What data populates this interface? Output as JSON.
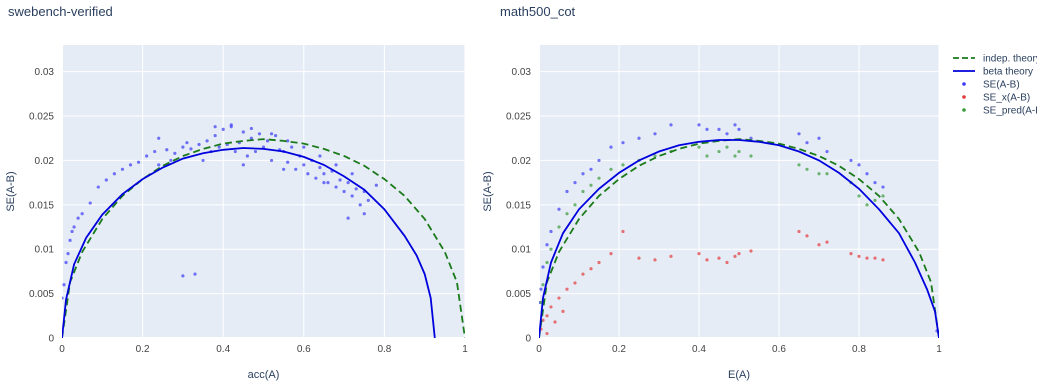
{
  "chart_data": [
    {
      "type": "scatter",
      "title": "swebench-verified",
      "xlabel": "acc(A)",
      "ylabel": "SE(A-B)",
      "xlim": [
        0,
        1
      ],
      "ylim": [
        0,
        0.033
      ],
      "xticks": [
        "0",
        "0.2",
        "0.4",
        "0.6",
        "0.8",
        "1"
      ],
      "yticks": [
        "0",
        "0.005",
        "0.01",
        "0.015",
        "0.02",
        "0.025",
        "0.03"
      ],
      "grid": true,
      "series": [
        {
          "name": "indep. theory",
          "kind": "line",
          "style": "dashed",
          "color": "#1a7a1a",
          "x": [
            0.0,
            0.02,
            0.05,
            0.1,
            0.15,
            0.2,
            0.25,
            0.3,
            0.35,
            0.4,
            0.45,
            0.5,
            0.55,
            0.6,
            0.65,
            0.7,
            0.75,
            0.8,
            0.85,
            0.9,
            0.95,
            0.98,
            1.0
          ],
          "y": [
            0.0,
            0.0063,
            0.0097,
            0.0134,
            0.016,
            0.0179,
            0.0194,
            0.0205,
            0.0213,
            0.0219,
            0.0222,
            0.0224,
            0.0222,
            0.0219,
            0.0213,
            0.0205,
            0.0194,
            0.0179,
            0.016,
            0.0134,
            0.0097,
            0.0063,
            0.0
          ]
        },
        {
          "name": "beta theory",
          "kind": "line",
          "style": "solid",
          "color": "#0000dd",
          "x": [
            0.0,
            0.01,
            0.03,
            0.06,
            0.1,
            0.15,
            0.2,
            0.25,
            0.3,
            0.35,
            0.4,
            0.45,
            0.5,
            0.55,
            0.6,
            0.65,
            0.7,
            0.75,
            0.8,
            0.85,
            0.88,
            0.9,
            0.915,
            0.925
          ],
          "y": [
            0.0,
            0.0043,
            0.0083,
            0.0113,
            0.0139,
            0.0162,
            0.0179,
            0.0192,
            0.0202,
            0.0208,
            0.0212,
            0.0214,
            0.0213,
            0.021,
            0.0204,
            0.0195,
            0.0182,
            0.0167,
            0.0145,
            0.0115,
            0.0093,
            0.0072,
            0.0045,
            0.0
          ]
        },
        {
          "name": "SE(A-B)",
          "kind": "points",
          "color": "#3b3bf5",
          "x": [
            0.0,
            0.005,
            0.01,
            0.015,
            0.02,
            0.025,
            0.03,
            0.04,
            0.05,
            0.07,
            0.09,
            0.11,
            0.13,
            0.15,
            0.17,
            0.19,
            0.21,
            0.23,
            0.24,
            0.26,
            0.28,
            0.3,
            0.31,
            0.32,
            0.34,
            0.36,
            0.37,
            0.38,
            0.39,
            0.4,
            0.41,
            0.42,
            0.43,
            0.44,
            0.45,
            0.46,
            0.47,
            0.48,
            0.49,
            0.5,
            0.51,
            0.52,
            0.53,
            0.54,
            0.55,
            0.56,
            0.57,
            0.58,
            0.59,
            0.6,
            0.61,
            0.62,
            0.63,
            0.64,
            0.65,
            0.66,
            0.67,
            0.68,
            0.69,
            0.7,
            0.71,
            0.72,
            0.73,
            0.74,
            0.75,
            0.76,
            0.78,
            0.3,
            0.33,
            0.38,
            0.42,
            0.47,
            0.52,
            0.56,
            0.6,
            0.64,
            0.68,
            0.72,
            0.24,
            0.27,
            0.35,
            0.45,
            0.55,
            0.65,
            0.71,
            0.75
          ],
          "y": [
            0.0045,
            0.006,
            0.0085,
            0.0095,
            0.011,
            0.012,
            0.0125,
            0.0135,
            0.014,
            0.0152,
            0.017,
            0.0178,
            0.0185,
            0.019,
            0.0195,
            0.0198,
            0.0205,
            0.021,
            0.0225,
            0.0212,
            0.0208,
            0.0215,
            0.022,
            0.0213,
            0.0218,
            0.0222,
            0.021,
            0.0228,
            0.0215,
            0.0235,
            0.0218,
            0.0238,
            0.021,
            0.022,
            0.0232,
            0.0205,
            0.0225,
            0.021,
            0.023,
            0.0215,
            0.0222,
            0.02,
            0.0228,
            0.0212,
            0.021,
            0.0198,
            0.0215,
            0.019,
            0.0205,
            0.0195,
            0.0185,
            0.02,
            0.018,
            0.0192,
            0.0185,
            0.0175,
            0.0188,
            0.017,
            0.0178,
            0.0165,
            0.0175,
            0.016,
            0.0168,
            0.015,
            0.0165,
            0.0155,
            0.0172,
            0.007,
            0.0072,
            0.0238,
            0.024,
            0.0236,
            0.023,
            0.0222,
            0.0215,
            0.0205,
            0.0195,
            0.0185,
            0.0195,
            0.02,
            0.02,
            0.0195,
            0.019,
            0.0175,
            0.0135,
            0.014
          ]
        }
      ]
    },
    {
      "type": "scatter",
      "title": "math500_cot",
      "xlabel": "E(A)",
      "ylabel": "SE(A-B)",
      "xlim": [
        0,
        1
      ],
      "ylim": [
        0,
        0.033
      ],
      "xticks": [
        "0",
        "0.2",
        "0.4",
        "0.6",
        "0.8",
        "1"
      ],
      "yticks": [
        "0",
        "0.005",
        "0.01",
        "0.015",
        "0.02",
        "0.025",
        "0.03"
      ],
      "grid": true,
      "legend": "right",
      "series": [
        {
          "name": "indep. theory",
          "kind": "line",
          "style": "dashed",
          "color": "#1a7a1a",
          "x": [
            0.0,
            0.02,
            0.05,
            0.1,
            0.15,
            0.2,
            0.25,
            0.3,
            0.35,
            0.4,
            0.45,
            0.5,
            0.55,
            0.6,
            0.65,
            0.7,
            0.75,
            0.8,
            0.85,
            0.9,
            0.95,
            0.98,
            1.0
          ],
          "y": [
            0.0,
            0.0063,
            0.0097,
            0.0134,
            0.016,
            0.0179,
            0.0194,
            0.0205,
            0.0213,
            0.0219,
            0.0222,
            0.0224,
            0.0222,
            0.0219,
            0.0213,
            0.0205,
            0.0194,
            0.0179,
            0.016,
            0.0134,
            0.0097,
            0.0063,
            0.0
          ]
        },
        {
          "name": "beta theory",
          "kind": "line",
          "style": "solid",
          "color": "#0000dd",
          "x": [
            0.0,
            0.01,
            0.03,
            0.06,
            0.1,
            0.15,
            0.2,
            0.25,
            0.3,
            0.35,
            0.4,
            0.45,
            0.5,
            0.55,
            0.6,
            0.65,
            0.7,
            0.75,
            0.8,
            0.85,
            0.9,
            0.94,
            0.97,
            0.99,
            1.0
          ],
          "y": [
            0.0,
            0.0045,
            0.0085,
            0.0118,
            0.0145,
            0.0168,
            0.0186,
            0.02,
            0.021,
            0.0217,
            0.0221,
            0.0223,
            0.0223,
            0.0221,
            0.0217,
            0.021,
            0.02,
            0.0186,
            0.0168,
            0.0145,
            0.0118,
            0.0085,
            0.0055,
            0.003,
            0.0
          ]
        },
        {
          "name": "SE(A-B)",
          "kind": "points",
          "color": "#3b3bf5",
          "x": [
            0.0,
            0.005,
            0.01,
            0.02,
            0.03,
            0.05,
            0.07,
            0.09,
            0.11,
            0.13,
            0.15,
            0.18,
            0.21,
            0.25,
            0.29,
            0.33,
            0.4,
            0.42,
            0.45,
            0.47,
            0.49,
            0.5,
            0.53,
            0.65,
            0.67,
            0.7,
            0.72,
            0.78,
            0.8,
            0.82,
            0.84,
            0.86,
            0.995
          ],
          "y": [
            0.004,
            0.0055,
            0.008,
            0.0105,
            0.012,
            0.0145,
            0.0165,
            0.0175,
            0.0185,
            0.019,
            0.02,
            0.0215,
            0.022,
            0.0225,
            0.023,
            0.024,
            0.024,
            0.0235,
            0.0235,
            0.023,
            0.024,
            0.0235,
            0.0225,
            0.023,
            0.022,
            0.0225,
            0.021,
            0.02,
            0.0195,
            0.0185,
            0.0175,
            0.017,
            0.0008
          ]
        },
        {
          "name": "SE_x(A-B)",
          "kind": "points",
          "color": "#e33b3b",
          "x": [
            0.005,
            0.01,
            0.02,
            0.03,
            0.05,
            0.07,
            0.09,
            0.11,
            0.13,
            0.15,
            0.18,
            0.21,
            0.25,
            0.29,
            0.33,
            0.4,
            0.42,
            0.45,
            0.47,
            0.49,
            0.5,
            0.53,
            0.65,
            0.67,
            0.7,
            0.72,
            0.78,
            0.8,
            0.82,
            0.84,
            0.86,
            0.02,
            0.04,
            0.06
          ],
          "y": [
            0.001,
            0.002,
            0.0025,
            0.0035,
            0.0045,
            0.0055,
            0.0062,
            0.0072,
            0.0078,
            0.0085,
            0.0095,
            0.012,
            0.009,
            0.0088,
            0.0092,
            0.0095,
            0.0088,
            0.009,
            0.0085,
            0.0092,
            0.0095,
            0.0098,
            0.012,
            0.0115,
            0.0105,
            0.0108,
            0.0095,
            0.0092,
            0.009,
            0.009,
            0.0088,
            0.0005,
            0.0018,
            0.003
          ]
        },
        {
          "name": "SE_pred(A-B)",
          "kind": "points",
          "color": "#3a9a3a",
          "x": [
            0.005,
            0.01,
            0.02,
            0.03,
            0.05,
            0.07,
            0.09,
            0.11,
            0.13,
            0.15,
            0.18,
            0.21,
            0.25,
            0.29,
            0.33,
            0.4,
            0.42,
            0.45,
            0.47,
            0.49,
            0.5,
            0.53,
            0.65,
            0.67,
            0.7,
            0.72,
            0.78,
            0.8,
            0.82,
            0.84,
            0.86
          ],
          "y": [
            0.004,
            0.006,
            0.0085,
            0.01,
            0.0125,
            0.014,
            0.015,
            0.0165,
            0.0172,
            0.018,
            0.019,
            0.0195,
            0.02,
            0.0205,
            0.021,
            0.0215,
            0.0205,
            0.021,
            0.0215,
            0.0205,
            0.021,
            0.0205,
            0.0195,
            0.019,
            0.0185,
            0.0185,
            0.0175,
            0.016,
            0.015,
            0.0155,
            0.016
          ]
        }
      ]
    }
  ]
}
